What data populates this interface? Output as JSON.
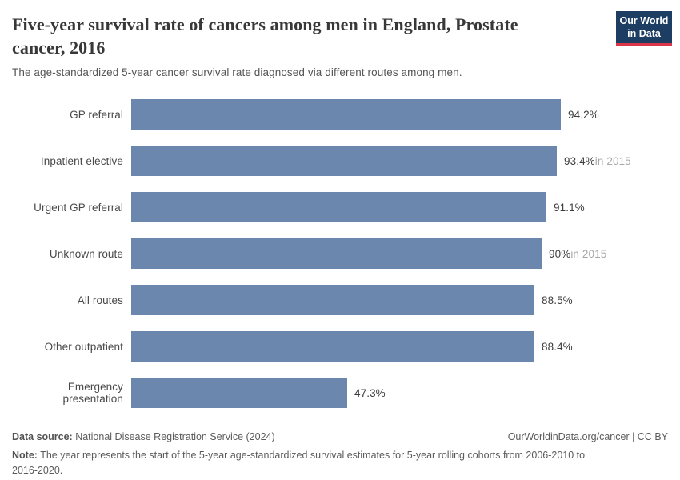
{
  "header": {
    "title": "Five-year survival rate of cancers among men in England, Prostate cancer, 2016",
    "subtitle": "The age-standardized 5-year cancer survival rate diagnosed via different routes among men.",
    "logo": {
      "line1": "Our World",
      "line2": "in Data",
      "bg_color": "#1d3d63",
      "accent_color": "#dc354a"
    }
  },
  "chart_data": {
    "type": "bar",
    "orientation": "horizontal",
    "title": "Five-year survival rate of cancers among men in England, Prostate cancer, 2016",
    "categories": [
      "GP referral",
      "Inpatient elective",
      "Urgent GP referral",
      "Unknown route",
      "All routes",
      "Other outpatient",
      "Emergency presentation"
    ],
    "values": [
      94.2,
      93.4,
      91.1,
      90,
      88.5,
      88.4,
      47.3
    ],
    "value_labels": [
      "94.2%",
      "93.4%",
      "91.1%",
      "90%",
      "88.5%",
      "88.4%",
      "47.3%"
    ],
    "value_suffixes": [
      "",
      "in 2015",
      "",
      "in 2015",
      "",
      "",
      ""
    ],
    "xlabel": "",
    "ylabel": "",
    "xlim": [
      0,
      100
    ],
    "grid": false,
    "legend": false,
    "bar_color": "#6c87ad"
  },
  "footer": {
    "source_label": "Data source:",
    "source_text": " National Disease Registration Service (2024)",
    "credit": "OurWorldinData.org/cancer | CC BY",
    "note_label": "Note:",
    "note_text": " The year represents the start of the 5-year age-standardized survival estimates for 5-year rolling cohorts from 2006-2010 to 2016-2020."
  }
}
